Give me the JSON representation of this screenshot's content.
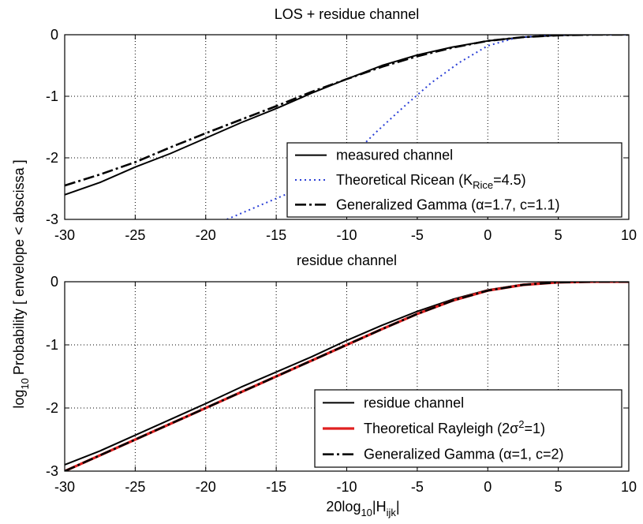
{
  "figure": {
    "ylabel_prefix": "log",
    "ylabel_sub": "10",
    "ylabel_main": "Probability [ envelope < abscissa ]",
    "xlabel_prefix": "20log",
    "xlabel_sub1": "10",
    "xlabel_mid": "|H",
    "xlabel_sub2": "ijk",
    "xlabel_end": "|"
  },
  "chart_data": [
    {
      "type": "line",
      "title": "LOS + residue channel",
      "xlim": [
        -30,
        10
      ],
      "ylim": [
        -3,
        0
      ],
      "xticks": [
        "-30",
        "-25",
        "-20",
        "-15",
        "-10",
        "-5",
        "0",
        "5",
        "10"
      ],
      "yticks": [
        "0",
        "-1",
        "-2",
        "-3"
      ],
      "grid": true,
      "legend_position": "lower-right",
      "series": [
        {
          "name": "measured channel",
          "legend": {
            "text": "measured channel"
          },
          "color": "#000000",
          "style": "solid",
          "x": [
            -30,
            -27.5,
            -25,
            -22.5,
            -20,
            -17.5,
            -15,
            -12.5,
            -10,
            -7.5,
            -5,
            -2.5,
            0,
            2.5,
            5,
            7.5,
            10
          ],
          "y": [
            -2.6,
            -2.4,
            -2.15,
            -1.93,
            -1.68,
            -1.43,
            -1.2,
            -0.95,
            -0.72,
            -0.5,
            -0.33,
            -0.2,
            -0.1,
            -0.04,
            -0.01,
            0,
            0
          ]
        },
        {
          "name": "Theoretical Ricean (KRice=4.5)",
          "legend": {
            "pre": "Theoretical Ricean (K",
            "sub": "Rice",
            "post": "=4.5)"
          },
          "color": "#2a3fd6",
          "style": "dotted",
          "x": [
            -18.5,
            -15,
            -12.5,
            -10,
            -8,
            -6,
            -4,
            -2,
            0,
            2,
            4,
            6,
            8,
            10
          ],
          "y": [
            -3.0,
            -2.66,
            -2.42,
            -2.05,
            -1.6,
            -1.18,
            -0.78,
            -0.45,
            -0.18,
            -0.05,
            -0.01,
            0,
            0,
            0
          ]
        },
        {
          "name": "Generalized Gamma (α=1.7, c=1.1)",
          "legend": {
            "text": "Generalized Gamma (α=1.7, c=1.1)"
          },
          "color": "#000000",
          "style": "dashdot",
          "x": [
            -30,
            -27.5,
            -25,
            -22.5,
            -20,
            -17.5,
            -15,
            -12.5,
            -10,
            -7.5,
            -5,
            -2.5,
            0,
            2.5,
            5,
            7.5,
            10
          ],
          "y": [
            -2.45,
            -2.27,
            -2.07,
            -1.83,
            -1.6,
            -1.38,
            -1.16,
            -0.93,
            -0.72,
            -0.52,
            -0.35,
            -0.21,
            -0.1,
            -0.04,
            -0.01,
            0,
            0
          ]
        }
      ]
    },
    {
      "type": "line",
      "title": "residue channel",
      "xlim": [
        -30,
        10
      ],
      "ylim": [
        -3,
        0
      ],
      "xticks": [
        "-30",
        "-25",
        "-20",
        "-15",
        "-10",
        "-5",
        "0",
        "5",
        "10"
      ],
      "yticks": [
        "0",
        "-1",
        "-2",
        "-3"
      ],
      "grid": true,
      "legend_position": "lower-right",
      "series": [
        {
          "name": "residue channel",
          "legend": {
            "text": "residue channel"
          },
          "color": "#000000",
          "style": "solid",
          "x": [
            -30,
            -27.5,
            -25,
            -22.5,
            -20,
            -17.5,
            -15,
            -12.5,
            -10,
            -7.5,
            -5,
            -2.5,
            0,
            2.5,
            5,
            7.5,
            10
          ],
          "y": [
            -2.9,
            -2.68,
            -2.43,
            -2.18,
            -1.93,
            -1.67,
            -1.43,
            -1.19,
            -0.93,
            -0.69,
            -0.47,
            -0.28,
            -0.13,
            -0.04,
            0,
            0,
            0
          ]
        },
        {
          "name": "Theoretical Rayleigh (2σ2=1)",
          "legend": {
            "pre": "Theoretical Rayleigh (2σ",
            "sup": "2",
            "post": "=1)"
          },
          "color": "#e02020",
          "style": "solid-thick",
          "x": [
            -30,
            -27.5,
            -25,
            -22.5,
            -20,
            -17.5,
            -15,
            -12.5,
            -10,
            -7.5,
            -5,
            -2.5,
            0,
            2.5,
            5,
            7.5,
            10
          ],
          "y": [
            -3.0,
            -2.75,
            -2.5,
            -2.25,
            -2.0,
            -1.75,
            -1.5,
            -1.25,
            -1.0,
            -0.75,
            -0.51,
            -0.3,
            -0.14,
            -0.05,
            -0.01,
            0,
            0
          ]
        },
        {
          "name": "Generalized Gamma (α=1, c=2)",
          "legend": {
            "text": "Generalized Gamma (α=1, c=2)"
          },
          "color": "#000000",
          "style": "dashdot",
          "x": [
            -30,
            -27.5,
            -25,
            -22.5,
            -20,
            -17.5,
            -15,
            -12.5,
            -10,
            -7.5,
            -5,
            -2.5,
            0,
            2.5,
            5,
            7.5,
            10
          ],
          "y": [
            -3.0,
            -2.75,
            -2.5,
            -2.25,
            -2.0,
            -1.75,
            -1.5,
            -1.25,
            -1.0,
            -0.75,
            -0.51,
            -0.3,
            -0.14,
            -0.05,
            -0.01,
            0,
            0
          ]
        }
      ]
    }
  ]
}
